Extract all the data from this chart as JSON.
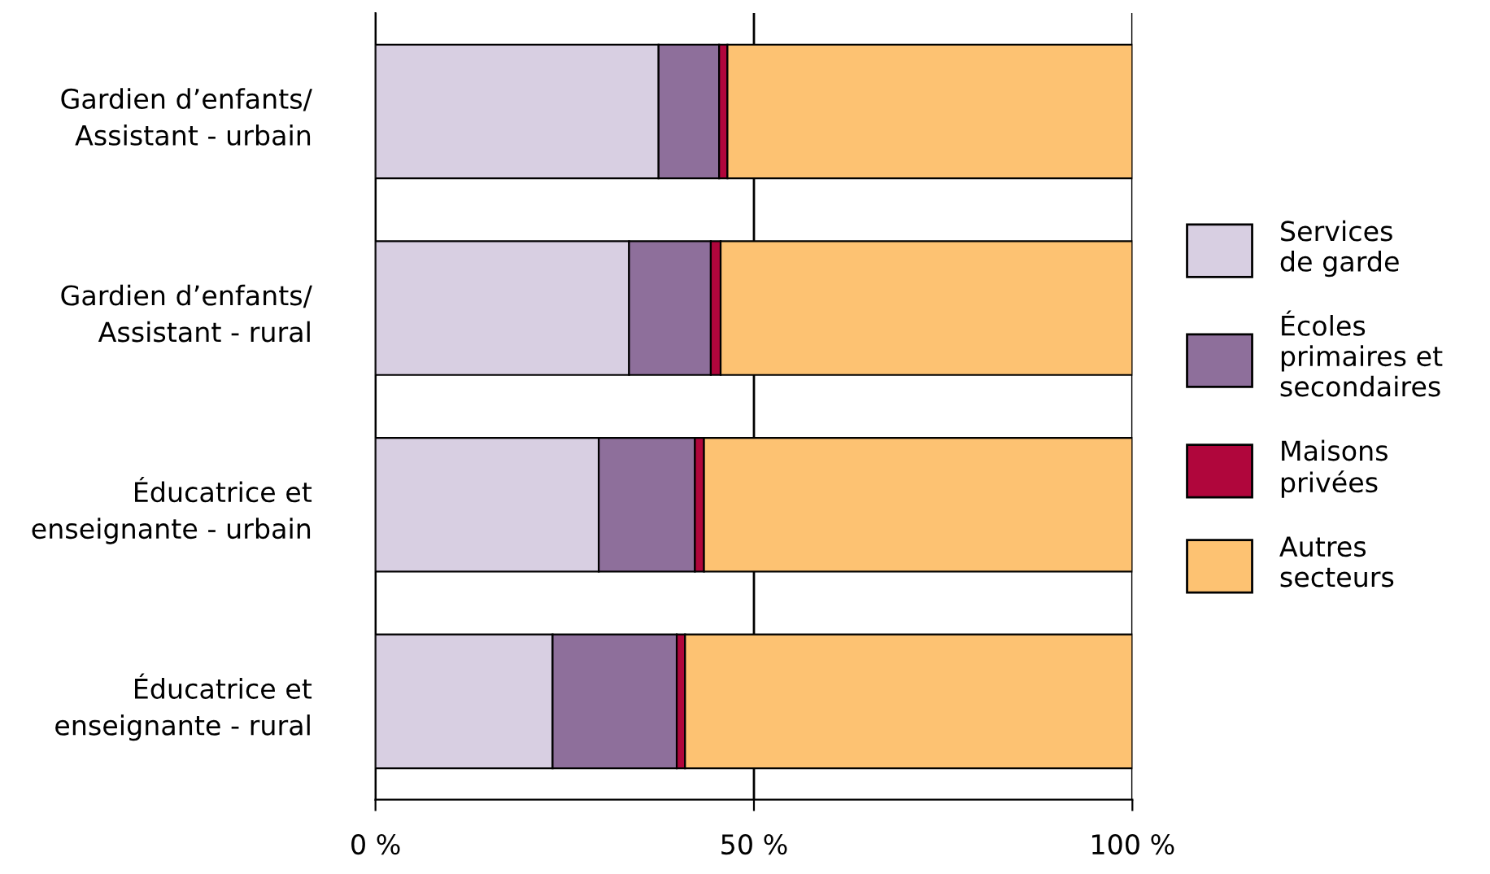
{
  "chart_data": {
    "type": "bar",
    "orientation": "horizontal",
    "stacked": true,
    "categories": [
      "Gardien d’enfants/\nAssistant - urbain",
      "Gardien d’enfants/\nAssistant - rural",
      "Éducatrice et\nenseignante - urbain",
      "Éducatrice et\nenseignante - rural"
    ],
    "series": [
      {
        "name": "Services\nde garde",
        "color": "#d8cfe2",
        "values": [
          37.4,
          33.5,
          29.5,
          23.4
        ]
      },
      {
        "name": "Écoles\nprimaires et\nsecondaires",
        "color": "#8e6f9b",
        "values": [
          8.0,
          10.8,
          12.7,
          16.4
        ]
      },
      {
        "name": "Maisons\nprivées",
        "color": "#b0063c",
        "values": [
          1.1,
          1.3,
          1.2,
          1.1
        ]
      },
      {
        "name": "Autres\nsecteurs",
        "color": "#fdc272",
        "values": [
          53.5,
          54.4,
          56.6,
          59.1
        ]
      }
    ],
    "xlim": [
      0,
      100
    ],
    "xticks": [
      {
        "value": 0,
        "label": "0 %"
      },
      {
        "value": 50,
        "label": "50 %"
      },
      {
        "value": 100,
        "label": "100 %"
      }
    ],
    "grid": "x",
    "legend": "right"
  }
}
